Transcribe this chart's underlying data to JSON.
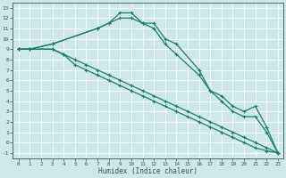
{
  "xlabel": "Humidex (Indice chaleur)",
  "background_color": "#cce8e8",
  "grid_color": "#ffffff",
  "line_color": "#1e7b6a",
  "xlim": [
    -0.5,
    23.5
  ],
  "ylim": [
    -1.5,
    13.5
  ],
  "yticks": [
    -1,
    0,
    1,
    2,
    3,
    4,
    5,
    6,
    7,
    8,
    9,
    10,
    11,
    12,
    13
  ],
  "xticks": [
    0,
    1,
    2,
    3,
    4,
    5,
    6,
    7,
    8,
    9,
    10,
    11,
    12,
    13,
    14,
    15,
    16,
    17,
    18,
    19,
    20,
    21,
    22,
    23
  ],
  "lines": [
    {
      "x": [
        0,
        1,
        3,
        7,
        8,
        9,
        10,
        11,
        12,
        13,
        14,
        16,
        17,
        18,
        19,
        20,
        21,
        22,
        23
      ],
      "y": [
        9,
        9,
        9.5,
        11,
        11.5,
        12.5,
        12.5,
        11.5,
        11.5,
        10,
        9.5,
        7,
        5,
        4.5,
        3.5,
        3,
        3.5,
        1.5,
        -1
      ]
    },
    {
      "x": [
        0,
        1,
        3,
        7,
        8,
        9,
        10,
        11,
        12,
        13,
        14,
        16,
        17,
        18,
        19,
        20,
        21,
        22,
        23
      ],
      "y": [
        9,
        9,
        9.5,
        11,
        11.5,
        12,
        12,
        11.5,
        11,
        9.5,
        8.5,
        6.5,
        5,
        4,
        3,
        2.5,
        2.5,
        1,
        -1
      ]
    },
    {
      "x": [
        0,
        1,
        3,
        4,
        5,
        6,
        7,
        8,
        9,
        10,
        11,
        12,
        13,
        14,
        15,
        16,
        17,
        18,
        19,
        20,
        21,
        22,
        23
      ],
      "y": [
        9,
        9,
        9,
        8.5,
        8,
        7.5,
        7,
        6.5,
        6,
        5.5,
        5,
        4.5,
        4,
        3.5,
        3,
        2.5,
        2,
        1.5,
        1,
        0.5,
        0,
        -0.5,
        -1
      ]
    },
    {
      "x": [
        0,
        1,
        3,
        4,
        5,
        6,
        7,
        8,
        9,
        10,
        11,
        12,
        13,
        14,
        15,
        16,
        17,
        18,
        19,
        20,
        21,
        22,
        23
      ],
      "y": [
        9,
        9,
        9,
        8.5,
        7.5,
        7,
        6.5,
        6,
        5.5,
        5,
        4.5,
        4,
        3.5,
        3,
        2.5,
        2,
        1.5,
        1,
        0.5,
        0,
        -0.5,
        -0.8,
        -1
      ]
    }
  ]
}
